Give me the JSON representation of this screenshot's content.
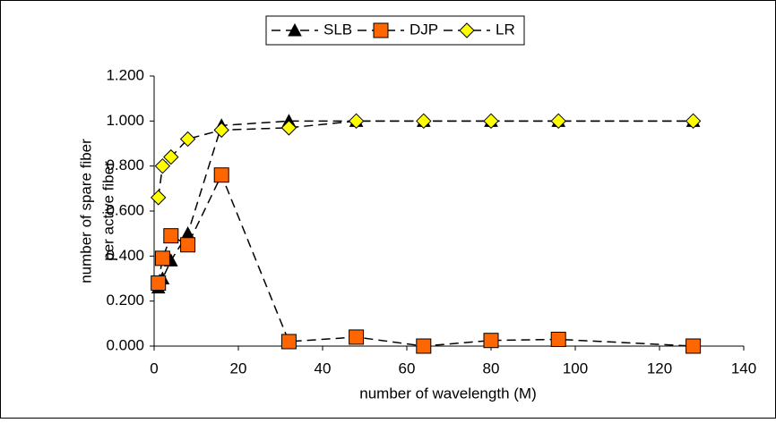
{
  "chart_data": {
    "type": "line",
    "xlabel": "number of wavelength (M)",
    "ylabel": [
      "number of spare fiber",
      "per active fiber"
    ],
    "x": [
      1,
      2,
      4,
      8,
      16,
      32,
      48,
      64,
      80,
      96,
      128
    ],
    "series": [
      {
        "name": "SLB",
        "color": "#000000",
        "marker": "triangle",
        "values": [
          0.26,
          0.3,
          0.38,
          0.5,
          0.98,
          1.0,
          1.0,
          1.0,
          1.0,
          1.0,
          1.0
        ]
      },
      {
        "name": "DJP",
        "color": "#ff6600",
        "marker": "square",
        "values": [
          0.28,
          0.39,
          0.49,
          0.45,
          0.76,
          0.02,
          0.04,
          0.0,
          0.025,
          0.03,
          0.0
        ]
      },
      {
        "name": "LR",
        "color": "#ffff00",
        "marker": "diamond",
        "values": [
          0.66,
          0.8,
          0.84,
          0.92,
          0.96,
          0.97,
          1.0,
          1.0,
          1.0,
          1.0,
          1.0
        ]
      }
    ],
    "line_style": "dashed",
    "xlim": [
      0,
      140
    ],
    "xticks": [
      0,
      20,
      40,
      60,
      80,
      100,
      120,
      140
    ],
    "ylim": [
      0,
      1.2
    ],
    "yticks": [
      {
        "value": 0,
        "label": "0.000"
      },
      {
        "value": 0.2,
        "label": "0.200"
      },
      {
        "value": 0.4,
        "label": "0.400"
      },
      {
        "value": 0.6,
        "label": "0.600"
      },
      {
        "value": 0.8,
        "label": "0.800"
      },
      {
        "value": 1.0,
        "label": "1.000"
      },
      {
        "value": 1.2,
        "label": "1.200"
      }
    ],
    "grid": false,
    "legend": "top"
  }
}
